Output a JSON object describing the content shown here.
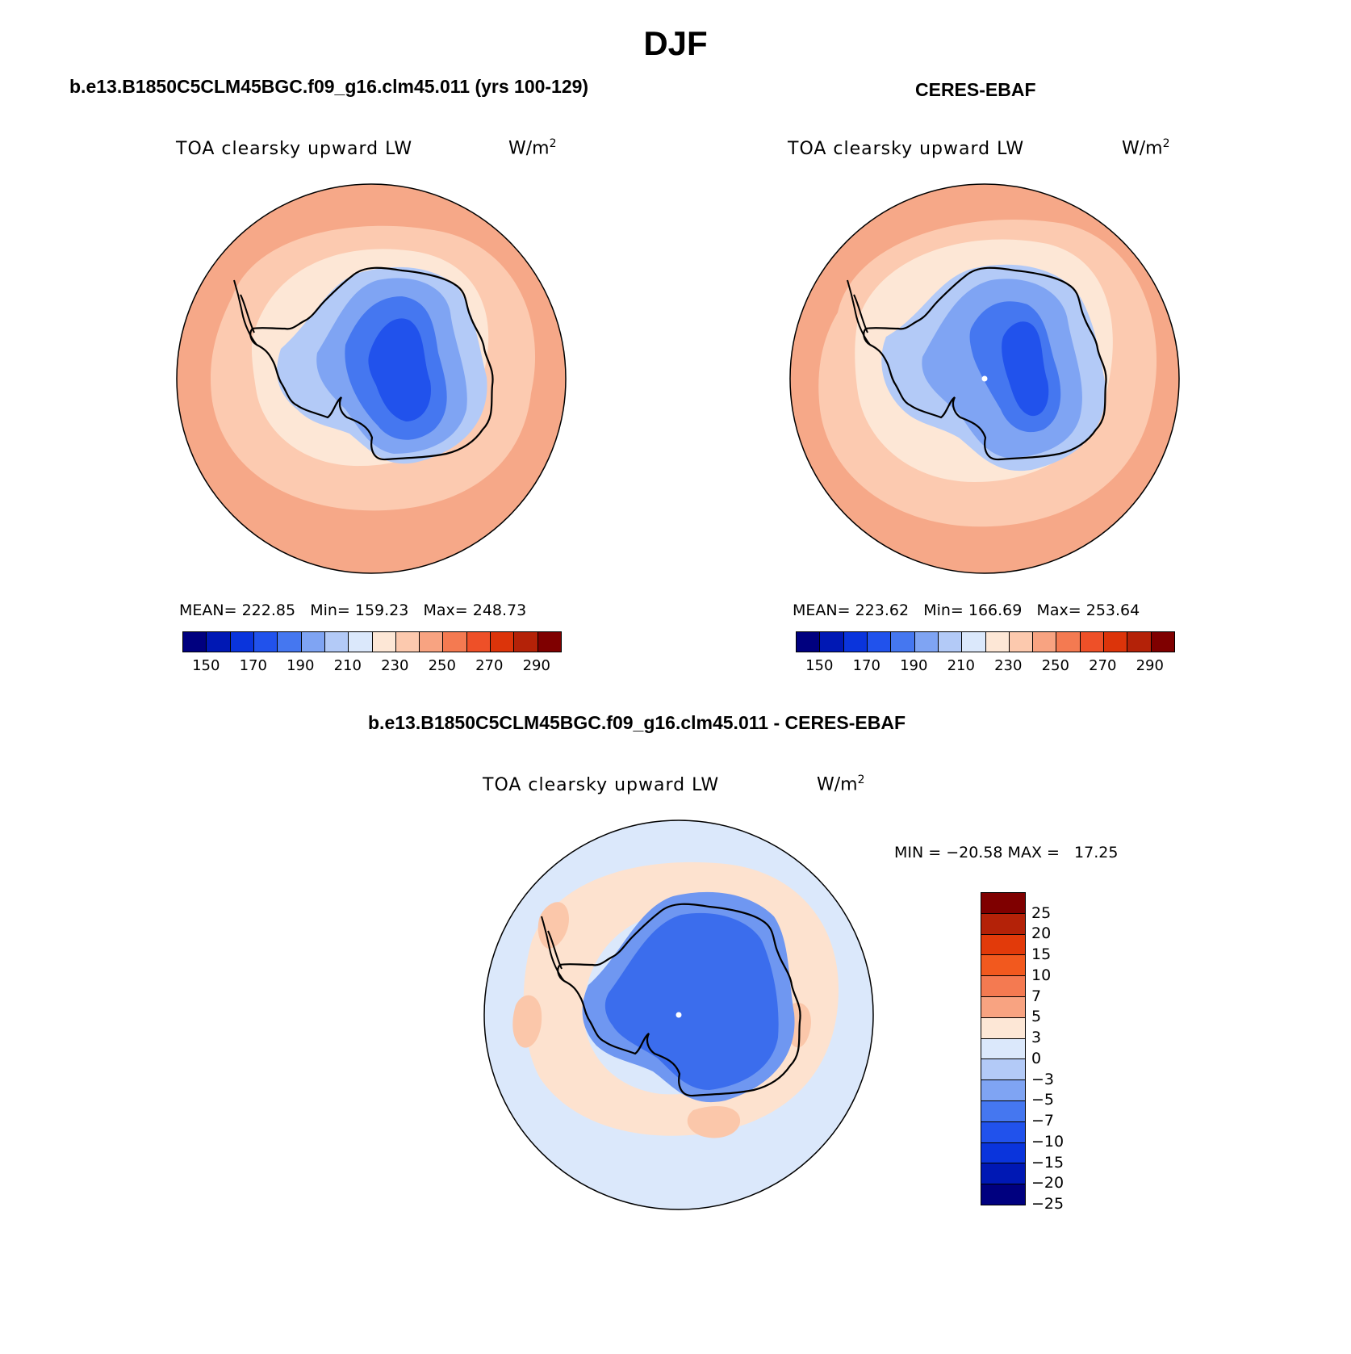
{
  "title": "DJF",
  "panels": [
    {
      "id": "model",
      "title": "b.e13.B1850C5CLM45BGC.f09_g16.clm45.011 (yrs 100-129)",
      "variable": "TOA clearsky upward LW",
      "units": "W/m",
      "units_exp": "2",
      "stats": {
        "mean_label": "MEAN=",
        "mean": "222.85",
        "min_label": "Min=",
        "min": "159.23",
        "max_label": "Max=",
        "max": "248.73"
      }
    },
    {
      "id": "obs",
      "title": "CERES-EBAF",
      "variable": "TOA clearsky upward LW",
      "units": "W/m",
      "units_exp": "2",
      "stats": {
        "mean_label": "MEAN=",
        "mean": "223.62",
        "min_label": "Min=",
        "min": "166.69",
        "max_label": "Max=",
        "max": "253.64"
      }
    }
  ],
  "diff": {
    "title": "b.e13.B1850C5CLM45BGC.f09_g16.clm45.011 - CERES-EBAF",
    "variable": "TOA clearsky upward LW",
    "units": "W/m",
    "units_exp": "2",
    "minmax": "MIN = −20.58 MAX =   17.25"
  },
  "colorbar_abs": {
    "colors": [
      "#00007f",
      "#0018b4",
      "#0a34dc",
      "#2152ec",
      "#4577f0",
      "#7fa4f3",
      "#b3caf7",
      "#dbe8fb",
      "#fde7d6",
      "#fcc9ae",
      "#f8a381",
      "#f47a51",
      "#ee5028",
      "#dc340a",
      "#b42208",
      "#7f0000"
    ],
    "labels": [
      "150",
      "170",
      "190",
      "210",
      "230",
      "250",
      "270",
      "290"
    ]
  },
  "colorbar_diff": {
    "colors": [
      "#7f0000",
      "#b42208",
      "#e23a0a",
      "#f2591e",
      "#f47a51",
      "#f8a381",
      "#fde7d6",
      "#dbe8fb",
      "#b3caf7",
      "#7fa4f3",
      "#4577f0",
      "#2152ec",
      "#0a34dc",
      "#0018b4",
      "#00007f"
    ],
    "labels": [
      "25",
      "20",
      "15",
      "10",
      "7",
      "5",
      "3",
      "0",
      "−3",
      "−5",
      "−7",
      "−10",
      "−15",
      "−20",
      "−25"
    ]
  },
  "map_colors": {
    "outer": "#f6a888",
    "ring": "#fccab0",
    "inner": "#fde7d6",
    "ice_edge": "#b3caf7",
    "ice_mid": "#7fa4f3",
    "ice_core": "#4577f0",
    "ice_deep": "#2152ec",
    "ice_darkest": "#0a34dc",
    "diff_bg": "#dbe8fb",
    "diff_warm": "#fde2cf",
    "diff_warmer": "#fbc7aa",
    "diff_ice": "#3b6ded",
    "diff_ice_light": "#6f97f1"
  }
}
